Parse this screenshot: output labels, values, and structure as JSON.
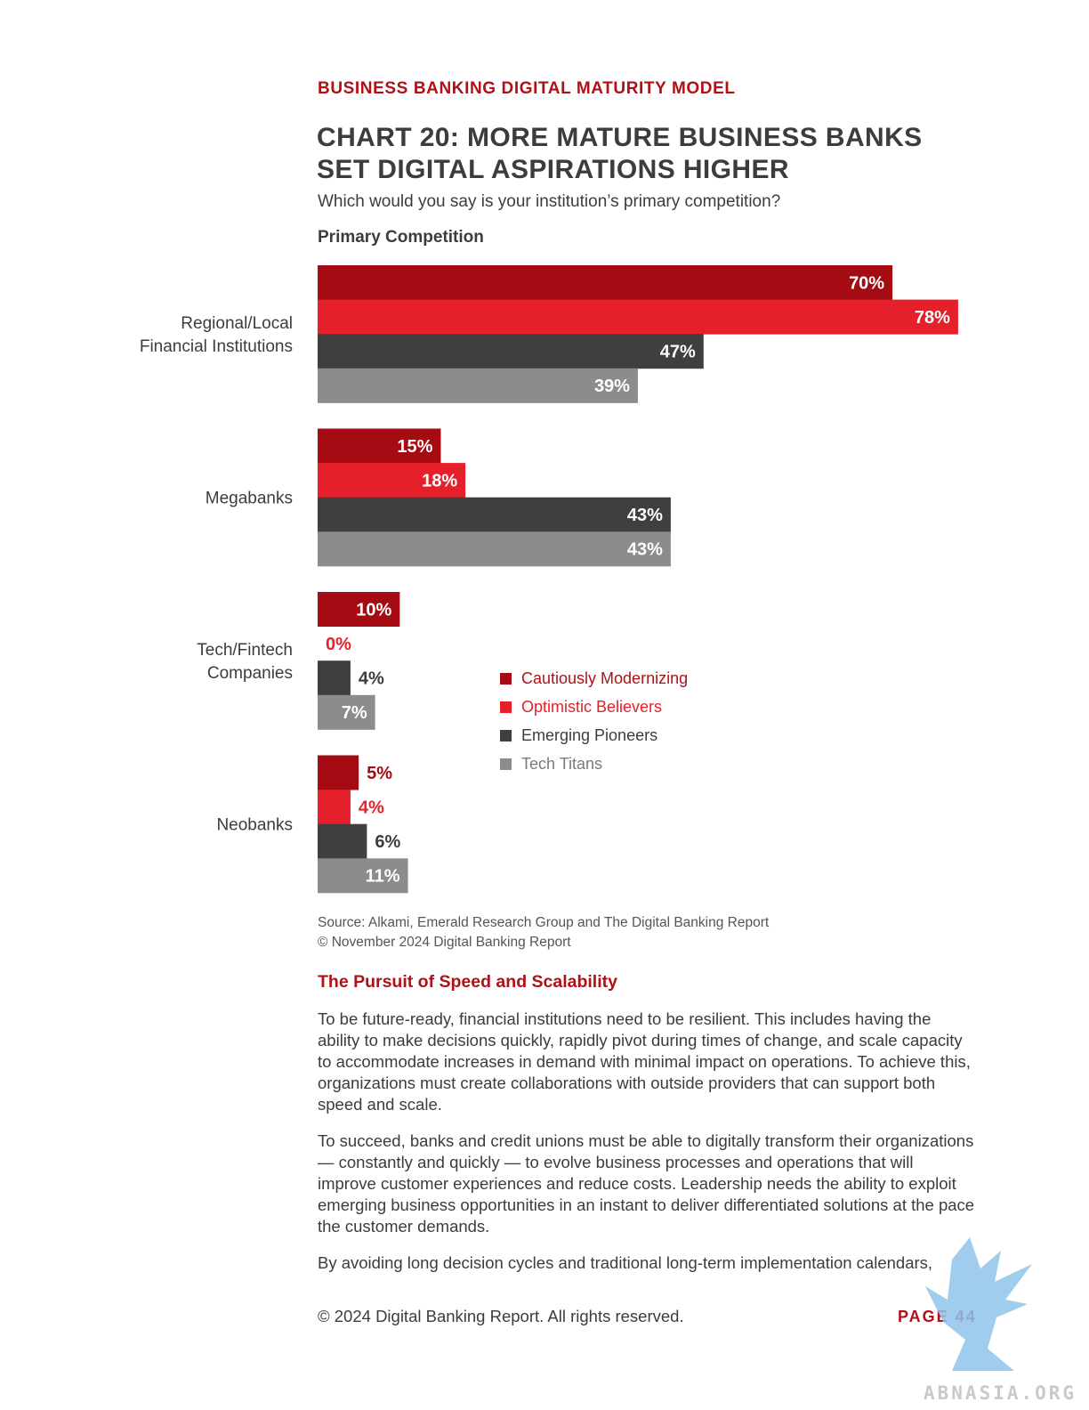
{
  "header": {
    "section": "BUSINESS BANKING DIGITAL MATURITY MODEL",
    "title_line1": "CHART 20: MORE MATURE BUSINESS BANKS",
    "title_line2": "SET DIGITAL ASPIRATIONS HIGHER",
    "subtitle": "Which would you say is your institution’s primary competition?",
    "chart_heading": "Primary Competition"
  },
  "chart_data": {
    "type": "bar",
    "orientation": "horizontal",
    "title": "CHART 20: MORE MATURE BUSINESS BANKS SET DIGITAL ASPIRATIONS HIGHER",
    "subtitle": "Primary Competition",
    "categories": [
      [
        "Regional/Local",
        "Financial Institutions"
      ],
      [
        "Megabanks"
      ],
      [
        "Tech/Fintech",
        "Companies"
      ],
      [
        "Neobanks"
      ]
    ],
    "series": [
      {
        "name": "Cautiously Modernizing",
        "color": "#a50b12",
        "values": [
          70,
          15,
          10,
          5
        ]
      },
      {
        "name": "Optimistic Believers",
        "color": "#e5202a",
        "values": [
          78,
          18,
          0,
          4
        ]
      },
      {
        "name": "Emerging Pioneers",
        "color": "#3f3f41",
        "values": [
          47,
          43,
          4,
          6
        ]
      },
      {
        "name": "Tech Titans",
        "color": "#8c8c8c",
        "values": [
          39,
          43,
          7,
          11
        ]
      }
    ],
    "unit": "%",
    "xlim": [
      0,
      100
    ],
    "grid": false,
    "legend_position": "right"
  },
  "source": {
    "line1": "Source: Alkami, Emerald Research Group and The Digital Banking Report",
    "line2": "© November 2024 Digital Banking Report"
  },
  "body": {
    "heading": "The Pursuit of Speed and Scalability",
    "p1": "To be future-ready, financial institutions need to be resilient. This includes having the ability to make decisions quickly, rapidly pivot during times of change, and scale capacity to accommodate increases in demand with minimal impact on operations. To achieve this, organizations must create collaborations with outside providers that can support both speed and scale.",
    "p2": "To succeed, banks and credit unions must be able to digitally transform their organizations — constantly and quickly — to evolve business processes and operations that will improve customer experiences and reduce costs. Leadership needs the ability to exploit emerging business opportunities in an instant to deliver differentiated solutions at the pace the customer demands.",
    "p3": "By avoiding long decision cycles and traditional long-term implementation calendars,"
  },
  "footer": {
    "copyright": "© 2024 Digital Banking Report. All rights reserved.",
    "page": "PAGE 44"
  },
  "watermark": {
    "text": "ABNASIA.ORG",
    "icon": "griffin-logo-icon",
    "color": "#8fc3ea"
  }
}
